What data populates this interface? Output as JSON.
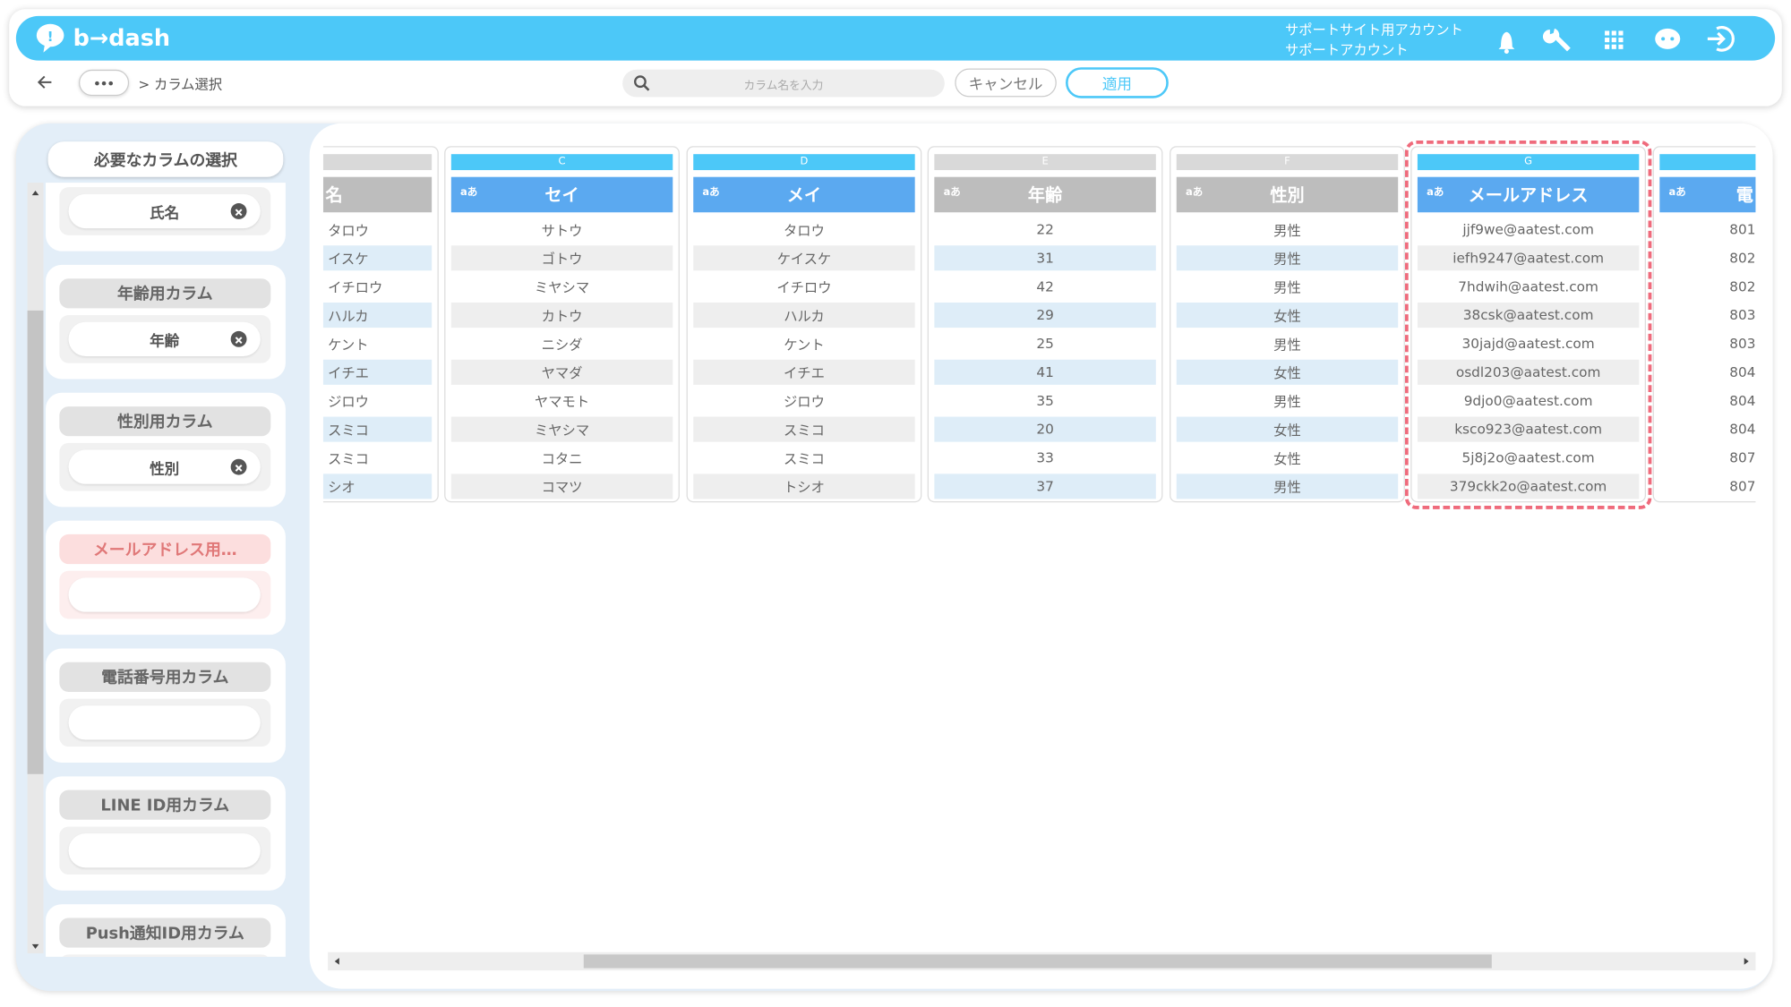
{
  "header": {
    "logo": "b→dash",
    "account": [
      "サポートサイト用アカウント",
      "サポートアカウント"
    ]
  },
  "toolbar": {
    "breadcrumb": "> カラム選択",
    "search_placeholder": "カラム名を入力",
    "cancel": "キャンセル",
    "apply": "適用"
  },
  "sidebar": {
    "title": "必要なカラムの選択",
    "groups": [
      {
        "column": "氏名"
      },
      {
        "label": "年齢用カラム",
        "column": "年齢"
      },
      {
        "label": "性別用カラム",
        "column": "性別"
      },
      {
        "label": "メールアドレス用…",
        "color": "#fcdede"
      },
      {
        "label": "電話番号用カラム"
      },
      {
        "label": "LINE ID用カラム"
      },
      {
        "label": "Push通知ID用カラム"
      }
    ]
  },
  "table": {
    "columns": [
      {
        "header": "名",
        "color": "#bdbdbd",
        "bar": "#d9d9d9",
        "stripe": "#deedf8",
        "values": [
          "タロウ",
          "イスケ",
          "イチロウ",
          "ハルカ",
          "ケント",
          "イチエ",
          "ジロウ",
          "スミコ",
          "スミコ",
          "シオ"
        ]
      },
      {
        "letter": "C",
        "type": "aあ",
        "header": "セイ",
        "color": "#5ba9f0",
        "bar": "#4cc8f8",
        "stripe": "#eeeeee",
        "values": [
          "サトウ",
          "ゴトウ",
          "ミヤシマ",
          "カトウ",
          "ニシダ",
          "ヤマダ",
          "ヤマモト",
          "ミヤシマ",
          "コタニ",
          "コマツ"
        ]
      },
      {
        "letter": "D",
        "type": "aあ",
        "header": "メイ",
        "color": "#5ba9f0",
        "bar": "#4cc8f8",
        "stripe": "#eeeeee",
        "values": [
          "タロウ",
          "ケイスケ",
          "イチロウ",
          "ハルカ",
          "ケント",
          "イチエ",
          "ジロウ",
          "スミコ",
          "スミコ",
          "トシオ"
        ]
      },
      {
        "letter": "E",
        "type": "aあ",
        "header": "年齢",
        "color": "#bdbdbd",
        "bar": "#d9d9d9",
        "stripe": "#deedf8",
        "values": [
          22,
          31,
          42,
          29,
          25,
          41,
          35,
          20,
          33,
          37
        ]
      },
      {
        "letter": "F",
        "type": "aあ",
        "header": "性別",
        "color": "#bdbdbd",
        "bar": "#d9d9d9",
        "stripe": "#deedf8",
        "values": [
          "男性",
          "男性",
          "男性",
          "女性",
          "男性",
          "女性",
          "男性",
          "女性",
          "女性",
          "男性"
        ]
      },
      {
        "letter": "G",
        "type": "aあ",
        "header": "メールアドレス",
        "color": "#5ba9f0",
        "bar": "#4cc8f8",
        "stripe": "#eeeeee",
        "highlight": true,
        "values": [
          "jjf9we@aatest.com",
          "iefh9247@aatest.com",
          "7hdwih@aatest.com",
          "38csk@aatest.com",
          "30jajd@aatest.com",
          "osdl203@aatest.com",
          "9djo0@aatest.com",
          "ksco923@aatest.com",
          "5j8j2o@aatest.com",
          "379ckk2o@aatest.com"
        ]
      },
      {
        "type": "aあ",
        "header": "電",
        "color": "#5ba9f0",
        "bar": "#4cc8f8",
        "values": [
          "801",
          "802",
          "802",
          "803",
          "803",
          "804",
          "804",
          "804",
          "807",
          "807"
        ]
      }
    ]
  }
}
